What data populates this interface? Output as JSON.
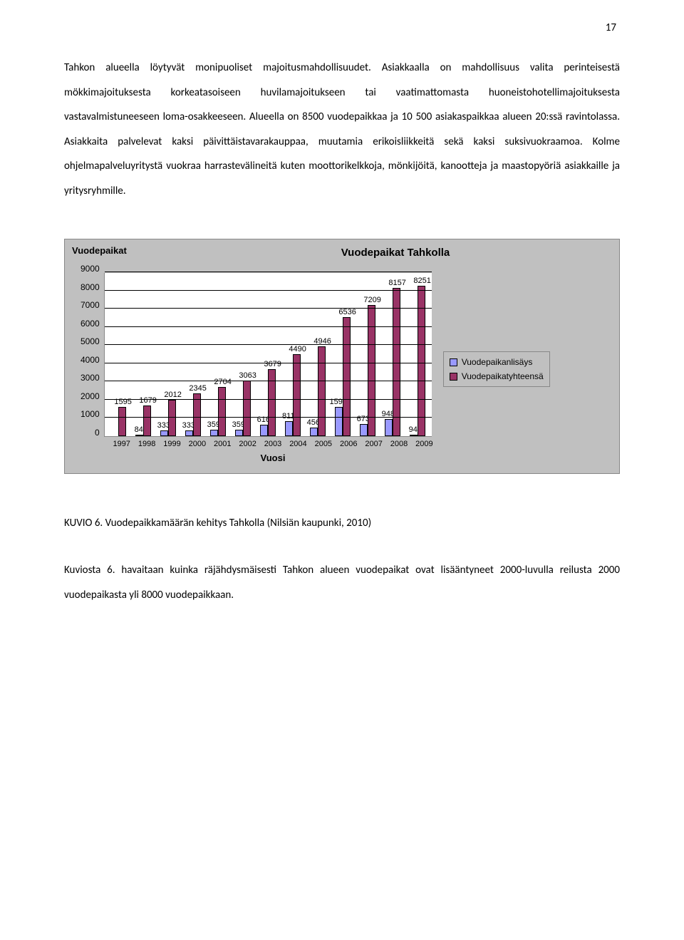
{
  "page_number": "17",
  "paragraph": "Tahkon alueella löytyvät monipuoliset majoitusmahdollisuudet. Asiakkaalla on mahdollisuus valita perinteisestä mökkimajoituksesta korkeatasoiseen huvilamajoitukseen tai vaatimattomasta huoneistohotellimajoituksesta vastavalmistuneeseen loma-osakkeeseen. Alueella on 8500 vuodepaikkaa ja 10 500 asiakaspaikkaa alueen 20:ssä ravintolassa. Asiakkaita palvelevat kaksi päivittäistavarakauppaa, muutamia erikoisliikkeitä sekä kaksi suksivuokraamoa. Kolme ohjelmapalveluyritystä vuokraa harrastevälineitä kuten moottorikelkkoja, mönkijöitä, kanootteja ja maastopyöriä asiakkaille ja yritysryhmille.",
  "chart": {
    "title": "Vuodepaikat Tahkolla",
    "ylabel": "Vuodepaikat",
    "xlabel": "Vuosi",
    "type": "bar",
    "ymax": 9000,
    "ytick_step": 1000,
    "yticks": [
      "9000",
      "8000",
      "7000",
      "6000",
      "5000",
      "4000",
      "3000",
      "2000",
      "1000",
      "0"
    ],
    "grid_on": true,
    "plot_bg": "#ffffff",
    "outer_bg": "#c0c0c0",
    "grid_color": "#000000",
    "categories": [
      "1997",
      "1998",
      "1999",
      "2000",
      "2001",
      "2002",
      "2003",
      "2004",
      "2005",
      "2006",
      "2007",
      "2008",
      "2009"
    ],
    "series": [
      {
        "name": "Vuodepaikanlisäys",
        "color": "#9999ff",
        "values": [
          null,
          84,
          333,
          333,
          359,
          359,
          616,
          811,
          456,
          1590,
          673,
          948,
          94
        ]
      },
      {
        "name": "Vuodepaikatyhteensä",
        "color": "#993366",
        "values": [
          1595,
          1679,
          2012,
          2345,
          2704,
          3063,
          3679,
          4490,
          4946,
          6536,
          7209,
          8157,
          8251
        ]
      }
    ]
  },
  "caption": "KUVIO 6. Vuodepaikkamäärän kehitys Tahkolla (Nilsiän kaupunki, 2010)",
  "kuviosta": "Kuviosta 6. havaitaan kuinka räjähdysmäisesti Tahkon alueen vuodepaikat ovat lisääntyneet 2000-luvulla reilusta 2000 vuodepaikasta yli 8000 vuodepaikkaan."
}
